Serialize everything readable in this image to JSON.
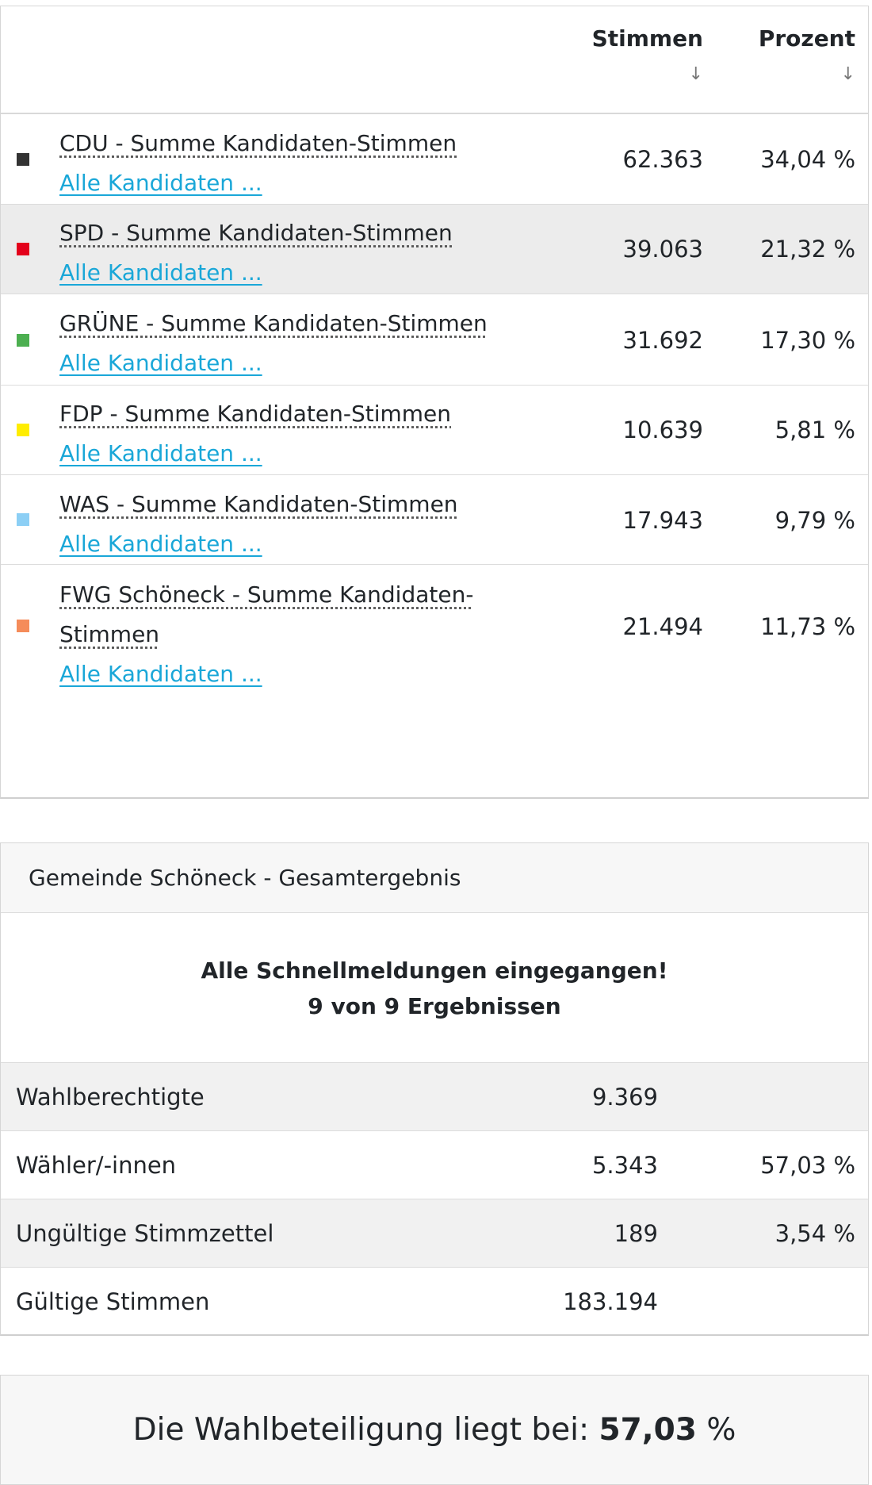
{
  "results": {
    "headers": {
      "votes": "Stimmen",
      "percent": "Prozent",
      "sort_icon": "↓"
    },
    "rows": [
      {
        "party": "CDU - Summe Kandidaten-Stimmen",
        "link": "Alle Kandidaten ...",
        "votes": "62.363",
        "percent": "34,04 %",
        "color": "#333333"
      },
      {
        "party": "SPD - Summe Kandidaten-Stimmen",
        "link": "Alle Kandidaten ...",
        "votes": "39.063",
        "percent": "21,32 %",
        "color": "#e3001b"
      },
      {
        "party": "GRÜNE - Summe Kandidaten-Stimmen",
        "link": "Alle Kandidaten ...",
        "votes": "31.692",
        "percent": "17,30 %",
        "color": "#4caf50"
      },
      {
        "party": "FDP - Summe Kandidaten-Stimmen",
        "link": "Alle Kandidaten ...",
        "votes": "10.639",
        "percent": "5,81 %",
        "color": "#ffed00"
      },
      {
        "party": "WAS - Summe Kandidaten-Stimmen",
        "link": "Alle Kandidaten ...",
        "votes": "17.943",
        "percent": "9,79 %",
        "color": "#8ccff5"
      },
      {
        "party": "FWG Schöneck - Summe Kandidaten-Stimmen",
        "party_line1": "FWG Schöneck - Summe Kandidaten-",
        "party_line2": "Stimmen",
        "link": "Alle Kandidaten ...",
        "votes": "21.494",
        "percent": "11,73 %",
        "color": "#f58c5a"
      }
    ]
  },
  "summary": {
    "title": "Gemeinde Schöneck - Gesamtergebnis",
    "status_line1": "Alle Schnellmeldungen eingegangen!",
    "status_line2": "9 von 9 Ergebnissen",
    "rows": [
      {
        "label": "Wahlberechtigte",
        "value": "9.369",
        "percent": ""
      },
      {
        "label": "Wähler/-innen",
        "value": "5.343",
        "percent": "57,03 %"
      },
      {
        "label": "Ungültige Stimmzettel",
        "value": "189",
        "percent": "3,54 %"
      },
      {
        "label": "Gültige Stimmen",
        "value": "183.194",
        "percent": ""
      }
    ]
  },
  "turnout": {
    "text": "Die Wahlbeteiligung liegt bei:",
    "value": "57,03",
    "unit": "%"
  }
}
